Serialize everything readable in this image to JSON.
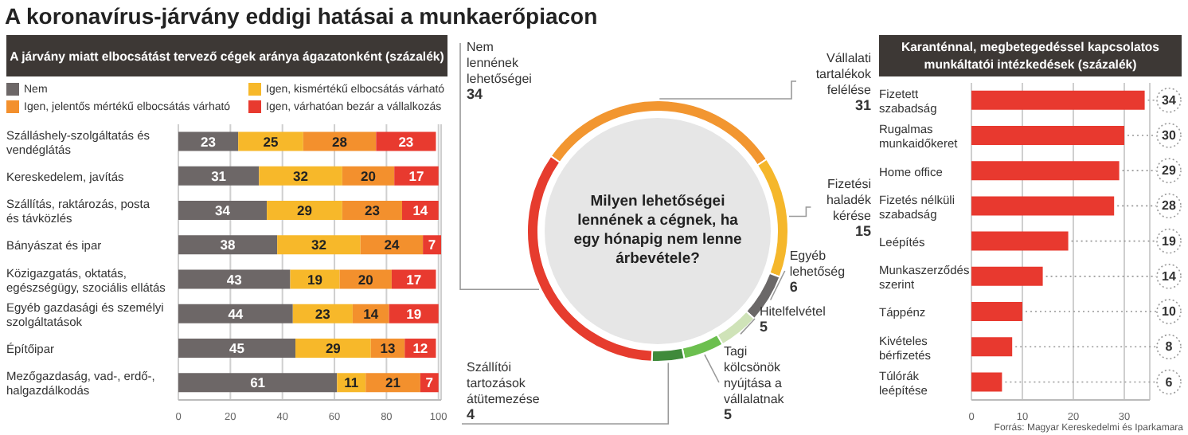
{
  "chart_data": [
    {
      "type": "bar",
      "orientation": "horizontal",
      "stacked": true,
      "title": "A koronavírus-járvány eddigi hatásai a munkaerőpiacon",
      "subtitle": "A járvány miatt elbocsátást tervező cégek aránya ágazatonként (százalék)",
      "categories": [
        "Szálláshely-szolgáltatás és vendéglátás",
        "Kereskedelem, javítás",
        "Szállítás, raktározás, posta és távközlés",
        "Bányászat és ipar",
        "Közigazgatás, oktatás, egészségügy, szociális ellátás",
        "Egyéb gazdasági és személyi szolgáltatások",
        "Építőipar",
        "Mezőgazdaság, vad-, erdő-, halgazdálkodás"
      ],
      "series": [
        {
          "name": "Nem",
          "color": "#6d6767",
          "values": [
            23,
            31,
            34,
            38,
            43,
            44,
            45,
            61
          ]
        },
        {
          "name": "Igen, kismértékű elbocsátás várható",
          "color": "#f7b82a",
          "values": [
            25,
            32,
            29,
            32,
            19,
            23,
            29,
            11
          ]
        },
        {
          "name": "Igen, jelentős mértékű elbocsátás várható",
          "color": "#f3902d",
          "values": [
            28,
            20,
            23,
            24,
            20,
            14,
            13,
            21
          ]
        },
        {
          "name": "Igen, várhatóan bezár a vállalkozás",
          "color": "#e83a2f",
          "values": [
            23,
            17,
            14,
            7,
            17,
            19,
            12,
            7
          ]
        }
      ],
      "xlim": [
        0,
        101
      ],
      "xticks": [
        0,
        20,
        40,
        60,
        80,
        100
      ],
      "grid": "x",
      "legend": "top",
      "data_labels": true
    },
    {
      "type": "donut",
      "title": "Milyen lehetőségei lennének a cégnek, ha egy hónapig nem lenne árbevétele?",
      "categories": [
        "Vállalati tartalékok felélése",
        "Fizetési haladék kérése",
        "Egyéb lehetőség",
        "Hitelfelvétel",
        "Tagi kölcsönök nyújtása a vállalatnak",
        "Szállítói tartozások átütemezése",
        "Nem lennének lehetőségei"
      ],
      "values": [
        31,
        15,
        6,
        5,
        5,
        4,
        34
      ],
      "colors": [
        "#f29630",
        "#f5b72b",
        "#6b6868",
        "#cfe3b8",
        "#6cbf4f",
        "#3f8a3a",
        "#e63c2e"
      ],
      "data_labels": true
    },
    {
      "type": "bar",
      "orientation": "horizontal",
      "title": "Karanténnal, megbetegedéssel kapcsolatos munkáltatói intézkedések (százalék)",
      "categories": [
        "Fizetett szabadság",
        "Rugalmas munkaidőkeret",
        "Home office",
        "Fizetés nélküli szabadság",
        "Leépítés",
        "Munkaszerződés szerint",
        "Táppénz",
        "Kivételes bérfizetés",
        "Túlórák leépítése"
      ],
      "values": [
        34,
        30,
        29,
        28,
        19,
        14,
        10,
        8,
        6
      ],
      "color": "#e8392f",
      "xlim": [
        0,
        35
      ],
      "xticks": [
        0,
        10,
        20,
        30
      ],
      "grid": "x",
      "data_labels": true,
      "annotations": [
        "Forrás: Magyar Kereskedelmi és Iparkamara"
      ]
    }
  ]
}
